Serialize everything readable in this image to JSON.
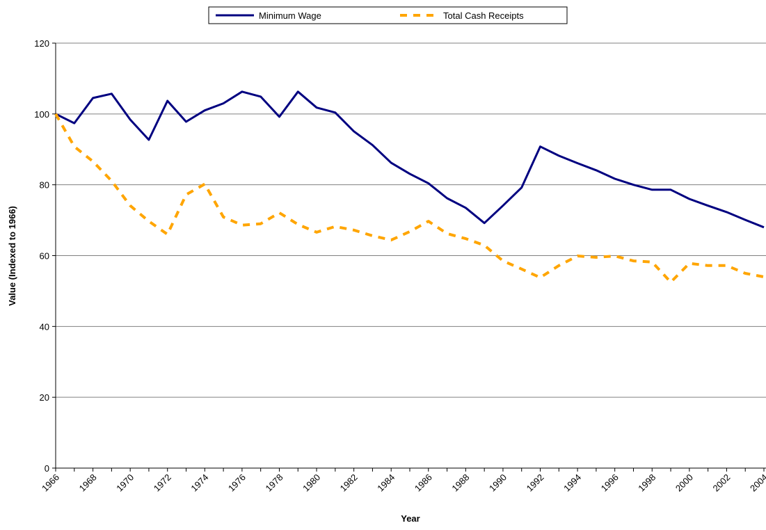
{
  "chart_data": {
    "type": "line",
    "x_label": "Year",
    "y_label": "Value (Indexed to 1966)",
    "categories": [
      "1966",
      null,
      "1968",
      null,
      "1970",
      null,
      "1972",
      null,
      "1974",
      null,
      "1976",
      null,
      "1978",
      null,
      "1980",
      null,
      "1982",
      null,
      "1984",
      null,
      "1986",
      null,
      "1988",
      null,
      "1990",
      null,
      "1992",
      null,
      "1994",
      null,
      "1996",
      null,
      "1998",
      null,
      "2000",
      null,
      "2002",
      null,
      "2004"
    ],
    "series": [
      {
        "name": "Minimum Wage",
        "color": "#000080",
        "dashed": false,
        "values": [
          100,
          97.4,
          104.5,
          105.7,
          98.4,
          92.7,
          103.7,
          97.8,
          101,
          103,
          106.3,
          104.9,
          99.2,
          106.3,
          101.8,
          100.4,
          95.1,
          91.2,
          86.2,
          83.1,
          80.4,
          76.2,
          73.5,
          69.2,
          74.1,
          79.2,
          90.8,
          88.2,
          86.1,
          84.1,
          81.7,
          80,
          78.6,
          78.6,
          76,
          74.1,
          72.3,
          70.1,
          68
        ]
      },
      {
        "name": "Total Cash Receipts",
        "color": "#FFA500",
        "dashed": true,
        "values": [
          100,
          90.8,
          86.6,
          81.1,
          74.1,
          69.7,
          66,
          77.2,
          80.2,
          70.9,
          68.6,
          69,
          72.1,
          68.8,
          66.6,
          68.2,
          67.2,
          65.6,
          64.4,
          66.8,
          69.7,
          66.2,
          64.8,
          62.9,
          58.5,
          56.2,
          53.8,
          57.2,
          59.9,
          59.5,
          59.9,
          58.5,
          58.2,
          52.5,
          57.8,
          57.2,
          57.2,
          55,
          54
        ]
      }
    ],
    "ylim": [
      0,
      120
    ],
    "yticks": [
      0,
      20,
      40,
      60,
      80,
      100,
      120
    ],
    "grid": true,
    "legend": "top"
  }
}
